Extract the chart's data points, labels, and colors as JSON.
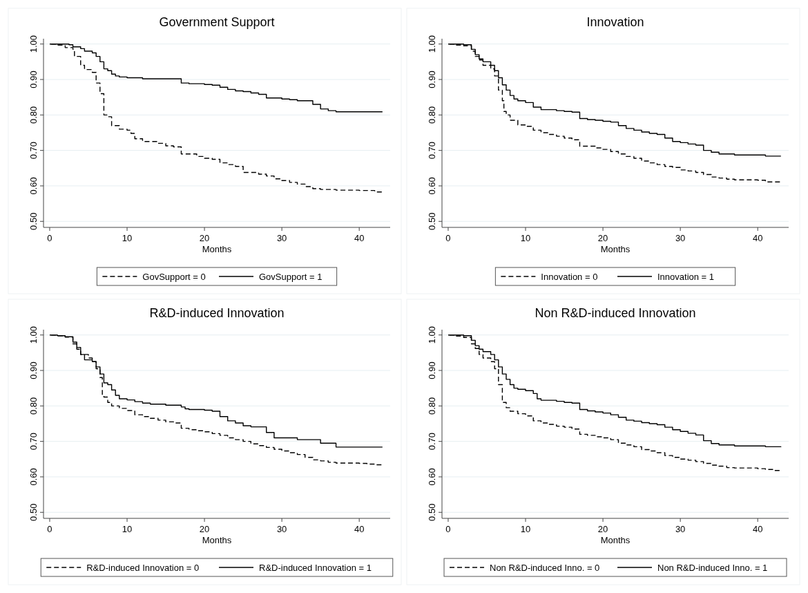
{
  "chart_data": [
    {
      "type": "step",
      "title": "Government Support",
      "xlabel": "Months",
      "xlim": [
        -0.8,
        44
      ],
      "xticks": [
        0,
        10,
        20,
        30,
        40
      ],
      "ylim": [
        0.483,
        1.015
      ],
      "yticks": [
        {
          "value": 0.5,
          "label": "0.50"
        },
        {
          "value": 0.6,
          "label": "0.60"
        },
        {
          "value": 0.7,
          "label": "0.70"
        },
        {
          "value": 0.8,
          "label": "0.80"
        },
        {
          "value": 0.9,
          "label": "0.90"
        },
        {
          "value": 1,
          "label": "1.00"
        }
      ],
      "grid": "y",
      "legend": "bottom",
      "series": [
        {
          "name": "GovSupport = 0",
          "color": "#000000",
          "line_style": "dashed",
          "x": [
            0,
            1,
            2,
            3,
            3.2,
            4,
            4.5,
            5.5,
            6,
            6.5,
            7,
            7.5,
            8,
            9,
            10,
            10.5,
            11,
            12,
            14,
            15,
            16,
            17,
            19,
            20,
            21,
            22,
            23,
            24,
            25,
            27,
            28,
            29,
            30,
            31,
            32,
            33,
            34,
            35,
            37,
            40,
            42,
            43
          ],
          "values": [
            1,
            0.997,
            0.99,
            0.985,
            0.965,
            0.94,
            0.928,
            0.92,
            0.89,
            0.86,
            0.8,
            0.795,
            0.77,
            0.76,
            0.757,
            0.748,
            0.733,
            0.725,
            0.72,
            0.713,
            0.71,
            0.69,
            0.683,
            0.678,
            0.675,
            0.665,
            0.66,
            0.655,
            0.638,
            0.633,
            0.628,
            0.62,
            0.615,
            0.61,
            0.605,
            0.598,
            0.592,
            0.59,
            0.588,
            0.587,
            0.583,
            0.581
          ]
        },
        {
          "name": "GovSupport = 1",
          "color": "#000000",
          "line_style": "solid",
          "x": [
            0,
            2.5,
            3,
            4,
            4.5,
            5.5,
            6,
            6.5,
            7,
            7.5,
            8,
            8.5,
            9,
            10,
            12,
            17,
            18,
            20,
            21,
            22,
            23,
            24,
            25,
            26,
            27,
            28,
            30,
            31,
            32,
            34,
            35,
            36,
            37,
            43
          ],
          "values": [
            1,
            0.998,
            0.992,
            0.987,
            0.98,
            0.975,
            0.965,
            0.95,
            0.93,
            0.925,
            0.915,
            0.91,
            0.907,
            0.905,
            0.902,
            0.89,
            0.888,
            0.886,
            0.884,
            0.878,
            0.872,
            0.868,
            0.866,
            0.862,
            0.858,
            0.848,
            0.845,
            0.843,
            0.84,
            0.83,
            0.817,
            0.812,
            0.809,
            0.809
          ]
        }
      ]
    },
    {
      "type": "step",
      "title": "Innovation",
      "xlabel": "Months",
      "xlim": [
        -0.8,
        44
      ],
      "xticks": [
        0,
        10,
        20,
        30,
        40
      ],
      "ylim": [
        0.483,
        1.015
      ],
      "yticks": [
        {
          "value": 0.5,
          "label": "0.50"
        },
        {
          "value": 0.6,
          "label": "0.60"
        },
        {
          "value": 0.7,
          "label": "0.70"
        },
        {
          "value": 0.8,
          "label": "0.80"
        },
        {
          "value": 0.9,
          "label": "0.90"
        },
        {
          "value": 1,
          "label": "1.00"
        }
      ],
      "grid": "y",
      "legend": "bottom",
      "series": [
        {
          "name": "Innovation = 0",
          "color": "#000000",
          "line_style": "dashed",
          "x": [
            0,
            1,
            2,
            3,
            3.5,
            4,
            4.5,
            5.5,
            6,
            6.5,
            7,
            7.2,
            7.5,
            8,
            9,
            10,
            11,
            12,
            13,
            14,
            15,
            16,
            17,
            19,
            20,
            21,
            22,
            23,
            24,
            25,
            26,
            27,
            28,
            29,
            30,
            31,
            32,
            33,
            34,
            35,
            36,
            37,
            40,
            41,
            43
          ],
          "values": [
            1,
            0.997,
            0.995,
            0.98,
            0.965,
            0.955,
            0.94,
            0.93,
            0.91,
            0.87,
            0.84,
            0.81,
            0.8,
            0.785,
            0.772,
            0.768,
            0.757,
            0.75,
            0.745,
            0.74,
            0.735,
            0.73,
            0.712,
            0.707,
            0.703,
            0.697,
            0.69,
            0.683,
            0.678,
            0.67,
            0.665,
            0.66,
            0.655,
            0.652,
            0.645,
            0.642,
            0.638,
            0.632,
            0.625,
            0.622,
            0.619,
            0.617,
            0.616,
            0.611,
            0.61
          ]
        },
        {
          "name": "Innovation = 1",
          "color": "#000000",
          "line_style": "solid",
          "x": [
            0,
            2,
            3,
            3.5,
            4,
            4.5,
            5.5,
            6,
            6.5,
            7,
            7.5,
            8,
            8.5,
            9,
            10,
            11,
            12,
            14,
            15,
            16,
            17,
            18,
            19,
            20,
            21,
            22,
            23,
            24,
            25,
            26,
            27,
            28,
            29,
            30,
            31,
            32,
            33,
            34,
            35,
            37,
            41,
            43
          ],
          "values": [
            1,
            0.998,
            0.985,
            0.97,
            0.958,
            0.95,
            0.94,
            0.925,
            0.905,
            0.885,
            0.87,
            0.855,
            0.845,
            0.84,
            0.835,
            0.822,
            0.815,
            0.812,
            0.81,
            0.808,
            0.79,
            0.787,
            0.785,
            0.782,
            0.78,
            0.77,
            0.762,
            0.757,
            0.752,
            0.748,
            0.745,
            0.735,
            0.725,
            0.722,
            0.718,
            0.715,
            0.7,
            0.695,
            0.69,
            0.687,
            0.684,
            0.684
          ]
        }
      ]
    },
    {
      "type": "step",
      "title": "R&D-induced Innovation",
      "xlabel": "Months",
      "xlim": [
        -0.8,
        44
      ],
      "xticks": [
        0,
        10,
        20,
        30,
        40
      ],
      "ylim": [
        0.483,
        1.015
      ],
      "yticks": [
        {
          "value": 0.5,
          "label": "0.50"
        },
        {
          "value": 0.6,
          "label": "0.60"
        },
        {
          "value": 0.7,
          "label": "0.70"
        },
        {
          "value": 0.8,
          "label": "0.80"
        },
        {
          "value": 0.9,
          "label": "0.90"
        },
        {
          "value": 1,
          "label": "1.00"
        }
      ],
      "grid": "y",
      "legend": "bottom",
      "series": [
        {
          "name": "R&D-induced Innovation = 0",
          "color": "#000000",
          "line_style": "dashed",
          "x": [
            0,
            1,
            2,
            3,
            3.5,
            4,
            5,
            5.5,
            6,
            6.5,
            6.8,
            7,
            7.5,
            8,
            9,
            10,
            11,
            12,
            13,
            14,
            15,
            16,
            17,
            18,
            19,
            20,
            21,
            22,
            23,
            24,
            25,
            26,
            27,
            28,
            29,
            30,
            31,
            32,
            33,
            34,
            35,
            36,
            37,
            40,
            41,
            42,
            43
          ],
          "values": [
            1,
            0.998,
            0.994,
            0.975,
            0.96,
            0.945,
            0.935,
            0.925,
            0.905,
            0.88,
            0.83,
            0.825,
            0.81,
            0.8,
            0.793,
            0.787,
            0.775,
            0.77,
            0.765,
            0.76,
            0.755,
            0.752,
            0.737,
            0.733,
            0.73,
            0.727,
            0.722,
            0.717,
            0.71,
            0.705,
            0.7,
            0.693,
            0.688,
            0.683,
            0.678,
            0.673,
            0.668,
            0.663,
            0.655,
            0.648,
            0.645,
            0.641,
            0.639,
            0.638,
            0.636,
            0.634,
            0.633
          ]
        },
        {
          "name": "R&D-induced Innovation = 1",
          "color": "#000000",
          "line_style": "solid",
          "x": [
            0,
            1,
            2,
            3,
            3.5,
            4,
            4.5,
            5.5,
            6,
            6.5,
            7,
            7.5,
            8,
            8.5,
            9,
            10,
            11,
            12,
            13,
            15,
            17,
            17.5,
            18,
            20,
            21,
            22,
            23,
            24,
            25,
            26,
            28,
            29,
            32,
            35,
            37,
            43
          ],
          "values": [
            1,
            0.998,
            0.995,
            0.98,
            0.965,
            0.945,
            0.93,
            0.925,
            0.91,
            0.89,
            0.865,
            0.86,
            0.845,
            0.83,
            0.82,
            0.817,
            0.812,
            0.808,
            0.805,
            0.802,
            0.797,
            0.792,
            0.79,
            0.788,
            0.785,
            0.77,
            0.758,
            0.752,
            0.744,
            0.741,
            0.725,
            0.71,
            0.705,
            0.695,
            0.684,
            0.684
          ]
        }
      ]
    },
    {
      "type": "step",
      "title": "Non R&D-induced Innovation",
      "xlabel": "Months",
      "xlim": [
        -0.8,
        44
      ],
      "xticks": [
        0,
        10,
        20,
        30,
        40
      ],
      "ylim": [
        0.483,
        1.015
      ],
      "yticks": [
        {
          "value": 0.5,
          "label": "0.50"
        },
        {
          "value": 0.6,
          "label": "0.60"
        },
        {
          "value": 0.7,
          "label": "0.70"
        },
        {
          "value": 0.8,
          "label": "0.80"
        },
        {
          "value": 0.9,
          "label": "0.90"
        },
        {
          "value": 1,
          "label": "1.00"
        }
      ],
      "grid": "y",
      "legend": "bottom",
      "series": [
        {
          "name": "Non R&D-induced Inno. = 0",
          "color": "#000000",
          "line_style": "dashed",
          "x": [
            0,
            1,
            2,
            3,
            3.5,
            4,
            4.5,
            5.5,
            6,
            6.5,
            7,
            7.5,
            8,
            9,
            10,
            11,
            12,
            13,
            14,
            15,
            16,
            17,
            18,
            19,
            20,
            21,
            22,
            23,
            24,
            25,
            26,
            27,
            28,
            29,
            30,
            31,
            32,
            33,
            34,
            35,
            36,
            37,
            40,
            41,
            42,
            43
          ],
          "values": [
            1,
            0.997,
            0.993,
            0.975,
            0.962,
            0.945,
            0.935,
            0.925,
            0.905,
            0.86,
            0.81,
            0.795,
            0.785,
            0.778,
            0.772,
            0.758,
            0.752,
            0.748,
            0.743,
            0.74,
            0.735,
            0.72,
            0.717,
            0.713,
            0.71,
            0.705,
            0.695,
            0.69,
            0.685,
            0.677,
            0.673,
            0.668,
            0.66,
            0.655,
            0.65,
            0.647,
            0.643,
            0.638,
            0.633,
            0.63,
            0.626,
            0.625,
            0.623,
            0.621,
            0.618,
            0.618
          ]
        },
        {
          "name": "Non R&D-induced Inno. = 1",
          "color": "#000000",
          "line_style": "solid",
          "x": [
            0,
            2,
            3,
            3.5,
            4,
            4.5,
            5.5,
            6,
            6.5,
            7,
            7.5,
            8,
            8.5,
            9,
            10,
            11,
            11.5,
            12,
            14,
            15,
            16,
            17,
            18,
            19,
            20,
            21,
            22,
            23,
            24,
            25,
            26,
            27,
            28,
            29,
            30,
            31,
            32,
            33,
            34,
            35,
            37,
            41,
            43
          ],
          "values": [
            1,
            0.998,
            0.985,
            0.97,
            0.96,
            0.953,
            0.945,
            0.93,
            0.91,
            0.89,
            0.875,
            0.86,
            0.85,
            0.847,
            0.843,
            0.835,
            0.82,
            0.816,
            0.813,
            0.81,
            0.808,
            0.79,
            0.786,
            0.783,
            0.78,
            0.775,
            0.768,
            0.76,
            0.757,
            0.753,
            0.75,
            0.747,
            0.74,
            0.733,
            0.728,
            0.723,
            0.718,
            0.702,
            0.694,
            0.69,
            0.687,
            0.685,
            0.684
          ]
        }
      ]
    }
  ]
}
